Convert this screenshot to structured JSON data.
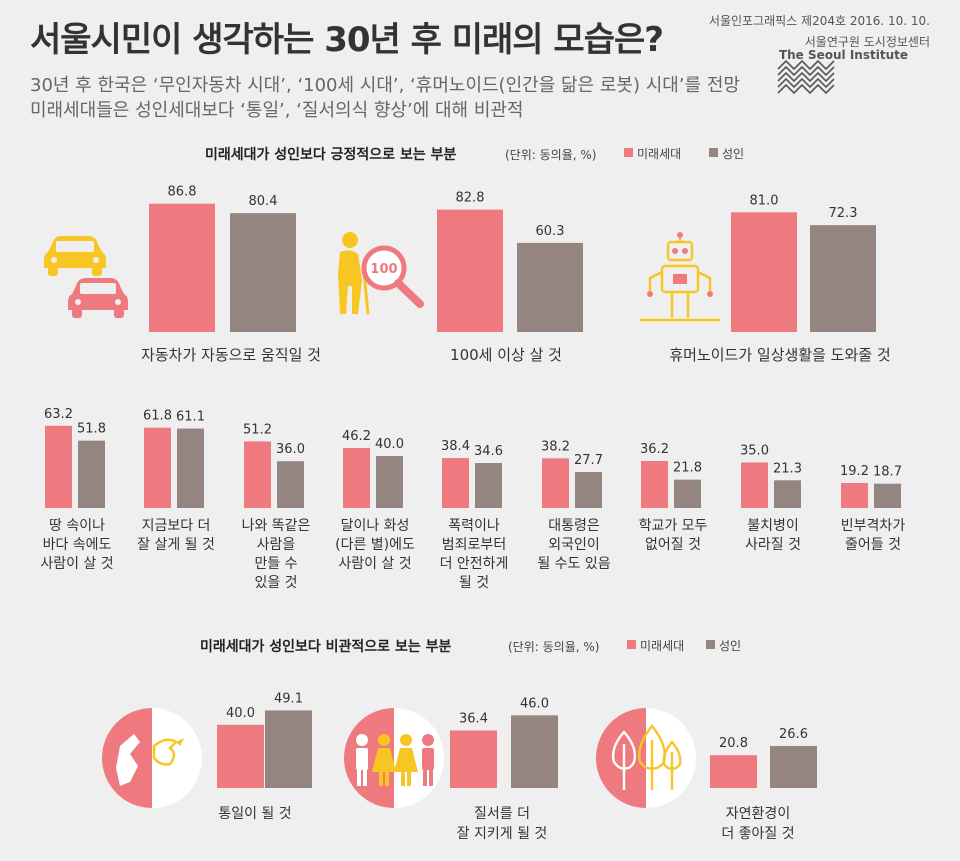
{
  "header": {
    "title": "서울시민이 생각하는 30년 후 미래의 모습은?",
    "subtitle_line1": "30년 후 한국은 ‘무인자동차 시대’, ‘100세 시대’, ‘휴머노이드(인간을 닮은 로봇) 시대’를 전망",
    "subtitle_line2": "미래세대들은 성인세대보다 ‘통일’, ‘질서의식 향상’에 대해 비관적",
    "issue": "서울인포그래픽스 제204호 2016. 10. 10.",
    "org": "서울연구원 도시정보센터",
    "org_en": "The Seoul Institute"
  },
  "colors": {
    "future": "#ee7a80",
    "adult": "#958580",
    "background": "#efefef",
    "icon_yellow": "#f7c623"
  },
  "legend": {
    "future": "미래세대",
    "adult": "성인"
  },
  "icons": [
    "car-icon",
    "elderly-magnifier-icon",
    "robot-icon",
    "korea-dove-icon",
    "people-icon",
    "trees-icon"
  ],
  "sections": {
    "positive": {
      "title": "미래세대가 성인보다 긍정적으로 보는 부분",
      "unit": "(단위: 동의율, %)"
    },
    "negative": {
      "title": "미래세대가 성인보다 비관적으로 보는 부분",
      "unit": "(단위: 동의율, %)"
    }
  },
  "chart_data": [
    {
      "type": "bar",
      "title": "미래세대가 성인보다 긍정적으로 보는 부분",
      "unit": "(단위: 동의율, %)",
      "categories": [
        "자동차가 자동으로 움직일 것",
        "100세 이상 살 것",
        "휴머노이드가 일상생활을 도와줄 것"
      ],
      "series": [
        {
          "name": "미래세대",
          "values": [
            86.8,
            82.8,
            81.0
          ]
        },
        {
          "name": "성인",
          "values": [
            80.4,
            60.3,
            72.3
          ]
        }
      ]
    },
    {
      "type": "bar",
      "categories": [
        [
          "땅 속이나",
          "바다 속에도",
          "사람이 살 것"
        ],
        [
          "지금보다 더",
          "잘 살게 될 것"
        ],
        [
          "나와 똑같은",
          "사람을",
          "만들 수",
          "있을 것"
        ],
        [
          "달이나 화성",
          "(다른 별)에도",
          "사람이 살 것"
        ],
        [
          "폭력이나",
          "범죄로부터",
          "더 안전하게",
          "될 것"
        ],
        [
          "대통령은",
          "외국인이",
          "될 수도 있음"
        ],
        [
          "학교가 모두",
          "없어질 것"
        ],
        [
          "불치병이",
          "사라질 것"
        ],
        [
          "빈부격차가",
          "줄어들 것"
        ]
      ],
      "series": [
        {
          "name": "미래세대",
          "values": [
            63.2,
            61.8,
            51.2,
            46.2,
            38.4,
            38.2,
            36.2,
            35.0,
            19.2
          ]
        },
        {
          "name": "성인",
          "values": [
            51.8,
            61.1,
            36.0,
            40.0,
            34.6,
            27.7,
            21.8,
            21.3,
            18.7
          ]
        }
      ]
    },
    {
      "type": "bar",
      "title": "미래세대가 성인보다 비관적으로 보는 부분",
      "unit": "(단위: 동의율, %)",
      "categories": [
        [
          "통일이 될 것"
        ],
        [
          "질서를 더",
          "잘 지키게 될 것"
        ],
        [
          "자연환경이",
          "더 좋아질 것"
        ]
      ],
      "series": [
        {
          "name": "미래세대",
          "values": [
            40.0,
            36.4,
            20.8
          ]
        },
        {
          "name": "성인",
          "values": [
            49.1,
            46.0,
            26.6
          ]
        }
      ]
    }
  ]
}
